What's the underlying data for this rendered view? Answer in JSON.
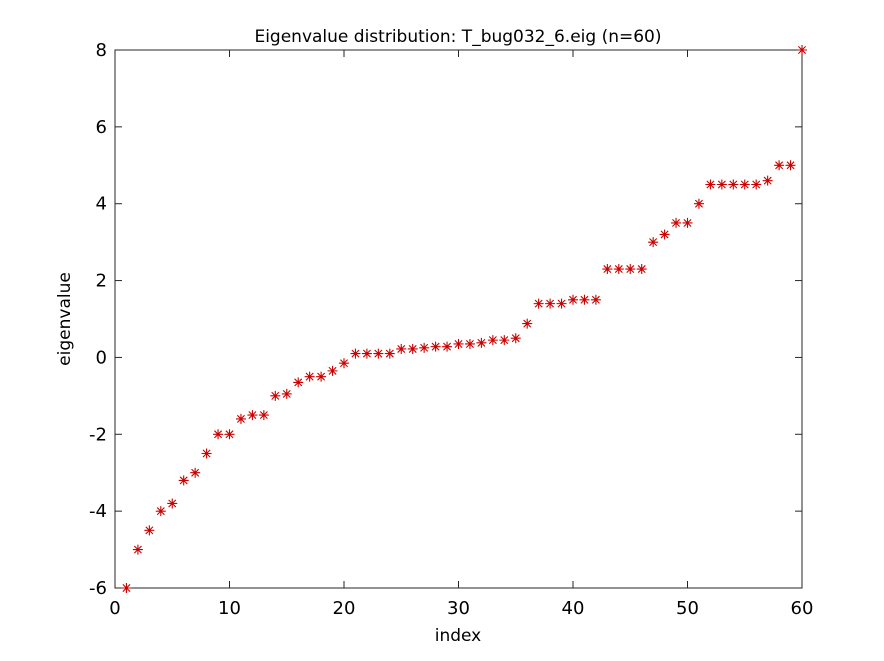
{
  "chart_data": {
    "type": "scatter",
    "title": "Eigenvalue distribution: T_bug032_6.eig (n=60)",
    "xlabel": "index",
    "ylabel": "eigenvalue",
    "xlim": [
      0,
      60
    ],
    "ylim": [
      -6,
      8
    ],
    "xticks": [
      0,
      10,
      20,
      30,
      40,
      50,
      60
    ],
    "yticks": [
      -6,
      -4,
      -2,
      0,
      2,
      4,
      6,
      8
    ],
    "grid": false,
    "marker": "asterisk",
    "marker_color": "#cc0000",
    "series": [
      {
        "x": [
          1,
          2,
          3,
          4,
          5,
          6,
          7,
          8,
          9,
          10,
          11,
          12,
          13,
          14,
          15,
          16,
          17,
          18,
          19,
          20,
          21,
          22,
          23,
          24,
          25,
          26,
          27,
          28,
          29,
          30,
          31,
          32,
          33,
          34,
          35,
          36,
          37,
          38,
          39,
          40,
          41,
          42,
          43,
          44,
          45,
          46,
          47,
          48,
          49,
          50,
          51,
          52,
          53,
          54,
          55,
          56,
          57,
          58,
          59,
          60
        ],
        "y": [
          -6,
          -5,
          -4.5,
          -4,
          -3.8,
          -3.2,
          -3,
          -2.5,
          -2,
          -2,
          -1.6,
          -1.5,
          -1.5,
          -1,
          -0.95,
          -0.65,
          -0.5,
          -0.5,
          -0.35,
          -0.15,
          0.1,
          0.1,
          0.1,
          0.1,
          0.22,
          0.22,
          0.25,
          0.28,
          0.28,
          0.35,
          0.35,
          0.38,
          0.45,
          0.45,
          0.5,
          0.88,
          1.4,
          1.4,
          1.4,
          1.5,
          1.5,
          1.5,
          2.3,
          2.3,
          2.3,
          2.3,
          3,
          3.2,
          3.5,
          3.5,
          4,
          4.5,
          4.5,
          4.5,
          4.5,
          4.5,
          4.6,
          5,
          5,
          8
        ]
      }
    ]
  }
}
